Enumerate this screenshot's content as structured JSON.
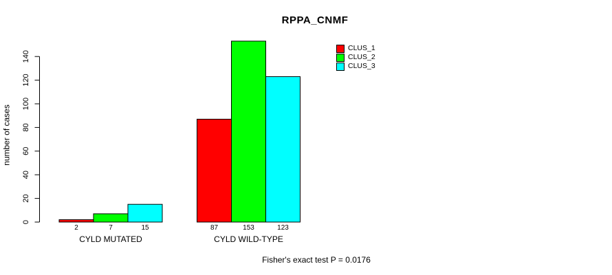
{
  "title": "RPPA_CNMF",
  "y_axis_label": "number of cases",
  "footer_note": "Fisher's exact test P = 0.0176",
  "chart_data": {
    "type": "bar",
    "title": "RPPA_CNMF",
    "xlabel": "",
    "ylabel": "number of cases",
    "ylim": [
      0,
      155
    ],
    "yticks": [
      0,
      20,
      40,
      60,
      80,
      100,
      120,
      140
    ],
    "grid": false,
    "legend_position": "top-right",
    "bar_outline_color": "#000000",
    "categories": [
      "CYLD MUTATED",
      "CYLD WILD-TYPE"
    ],
    "series": [
      {
        "name": "CLUS_1",
        "color": "#ff0000",
        "values": [
          2,
          87
        ]
      },
      {
        "name": "CLUS_2",
        "color": "#00ff00",
        "values": [
          7,
          153
        ]
      },
      {
        "name": "CLUS_3",
        "color": "#00ffff",
        "values": [
          15,
          123
        ]
      }
    ],
    "bar_value_labels": [
      [
        2,
        7,
        15
      ],
      [
        87,
        153,
        123
      ]
    ],
    "annotation": "Fisher's exact test P = 0.0176"
  }
}
